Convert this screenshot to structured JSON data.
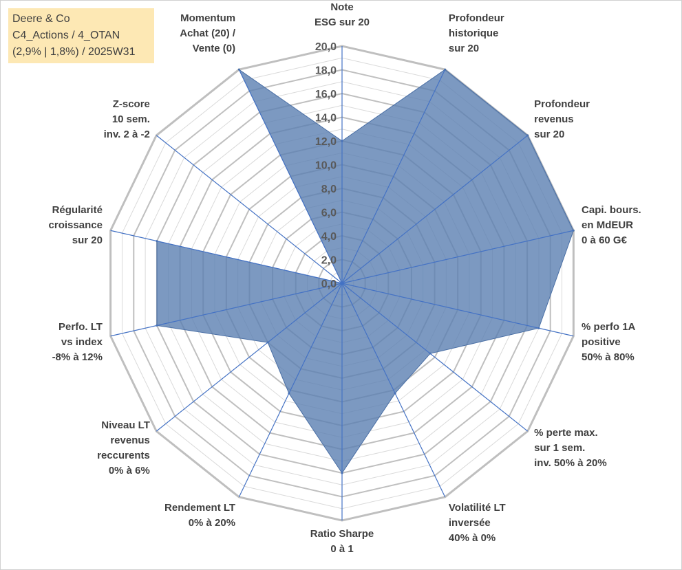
{
  "info_box": {
    "line1": "Deere & Co",
    "line2": "C4_Actions / 4_OTAN",
    "line3": "(2,9% | 1,8%) / 2025W31"
  },
  "colors": {
    "fill": "#5b80b2",
    "fill_opacity": 0.8,
    "axis_line": "#4472c4",
    "grid_major": "#bfbfbf",
    "grid_minor": "#d9d9d9",
    "info_bg": "#fde8b4"
  },
  "chart_data": {
    "type": "radar",
    "rmin": 0,
    "rmax": 20,
    "tick_step": 2,
    "tick_labels": [
      "0,0",
      "2,0",
      "4,0",
      "6,0",
      "8,0",
      "10,0",
      "12,0",
      "14,0",
      "16,0",
      "18,0",
      "20,0"
    ],
    "axes": [
      {
        "label": [
          "Note",
          "ESG sur 20"
        ],
        "value": 12.0
      },
      {
        "label": [
          "Profondeur",
          "historique",
          "sur 20"
        ],
        "value": 20.0
      },
      {
        "label": [
          "Profondeur",
          "revenus",
          "sur 20"
        ],
        "value": 20.0
      },
      {
        "label": [
          "Capi. bours.",
          "en MdEUR",
          "0 à 60 G€"
        ],
        "value": 20.0
      },
      {
        "label": [
          "% perfo 1A",
          "positive",
          "50% à 80%"
        ],
        "value": 17.0
      },
      {
        "label": [
          "% perte max.",
          "sur 1 sem.",
          "inv. 50% à 20%"
        ],
        "value": 9.5
      },
      {
        "label": [
          "Volatilité LT",
          "inversée",
          "40% à 0%"
        ],
        "value": 10.3
      },
      {
        "label": [
          "Ratio Sharpe",
          "0 à 1"
        ],
        "value": 16.0
      },
      {
        "label": [
          "Rendement LT",
          "0% à 20%"
        ],
        "value": 10.3
      },
      {
        "label": [
          "Niveau LT",
          "revenus",
          "reccurents",
          "0% à 6%"
        ],
        "value": 8.0
      },
      {
        "label": [
          "Perfo. LT",
          "vs index",
          "-8% à 12%"
        ],
        "value": 16.0
      },
      {
        "label": [
          "Régularité",
          "croissance",
          "sur 20"
        ],
        "value": 16.0
      },
      {
        "label": [
          "Z-score",
          "10 sem.",
          "inv. 2 à -2"
        ],
        "value": 0.0
      },
      {
        "label": [
          "Momentum",
          "Achat (20) /",
          "Vente (0)"
        ],
        "value": 20.0
      }
    ],
    "grid": true,
    "legend": "none"
  }
}
